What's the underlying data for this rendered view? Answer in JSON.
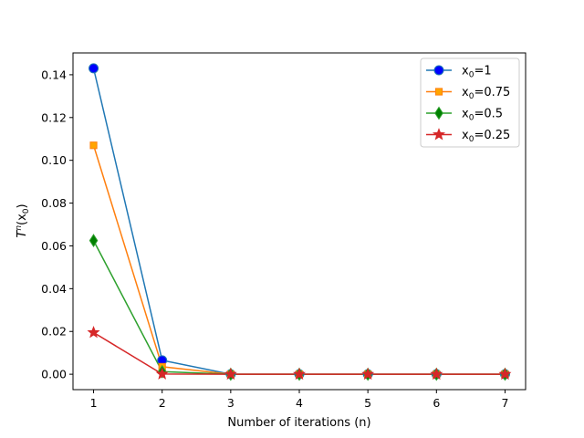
{
  "chart_data": {
    "type": "line",
    "title": "",
    "xlabel": "Number of iterations (n)",
    "ylabel": "T^n(x_0)",
    "x": [
      1,
      2,
      3,
      4,
      5,
      6,
      7
    ],
    "xlim": [
      0.7,
      7.3
    ],
    "ylim": [
      -0.0072,
      0.1502
    ],
    "xticks": [
      1,
      2,
      3,
      4,
      5,
      6,
      7
    ],
    "yticks": [
      0.0,
      0.02,
      0.04,
      0.06,
      0.08,
      0.1,
      0.12,
      0.14
    ],
    "ytick_labels": [
      "0.00",
      "0.02",
      "0.04",
      "0.06",
      "0.08",
      "0.10",
      "0.12",
      "0.14"
    ],
    "grid": false,
    "legend_position": "top-right",
    "series": [
      {
        "name": "x_0=1",
        "label_base": "x",
        "label_sub": "0",
        "label_rest": "=1",
        "marker": "circle",
        "color": "#1f77b4",
        "marker_fill": "#0000ff",
        "values": [
          0.143,
          0.0065,
          0.0,
          0.0,
          0.0,
          0.0,
          0.0
        ]
      },
      {
        "name": "x_0=0.75",
        "label_base": "x",
        "label_sub": "0",
        "label_rest": "=0.75",
        "marker": "square",
        "color": "#ff7f0e",
        "marker_fill": "#ffa500",
        "values": [
          0.107,
          0.0035,
          0.0,
          0.0,
          0.0,
          0.0,
          0.0
        ]
      },
      {
        "name": "x_0=0.5",
        "label_base": "x",
        "label_sub": "0",
        "label_rest": "=0.5",
        "marker": "diamond",
        "color": "#2ca02c",
        "marker_fill": "#008000",
        "values": [
          0.0625,
          0.0012,
          0.0,
          0.0,
          0.0,
          0.0,
          0.0
        ]
      },
      {
        "name": "x_0=0.25",
        "label_base": "x",
        "label_sub": "0",
        "label_rest": "=0.25",
        "marker": "star",
        "color": "#d62728",
        "marker_fill": "#d62728",
        "values": [
          0.0195,
          0.0001,
          0.0,
          0.0,
          0.0,
          0.0,
          0.0
        ]
      }
    ]
  }
}
